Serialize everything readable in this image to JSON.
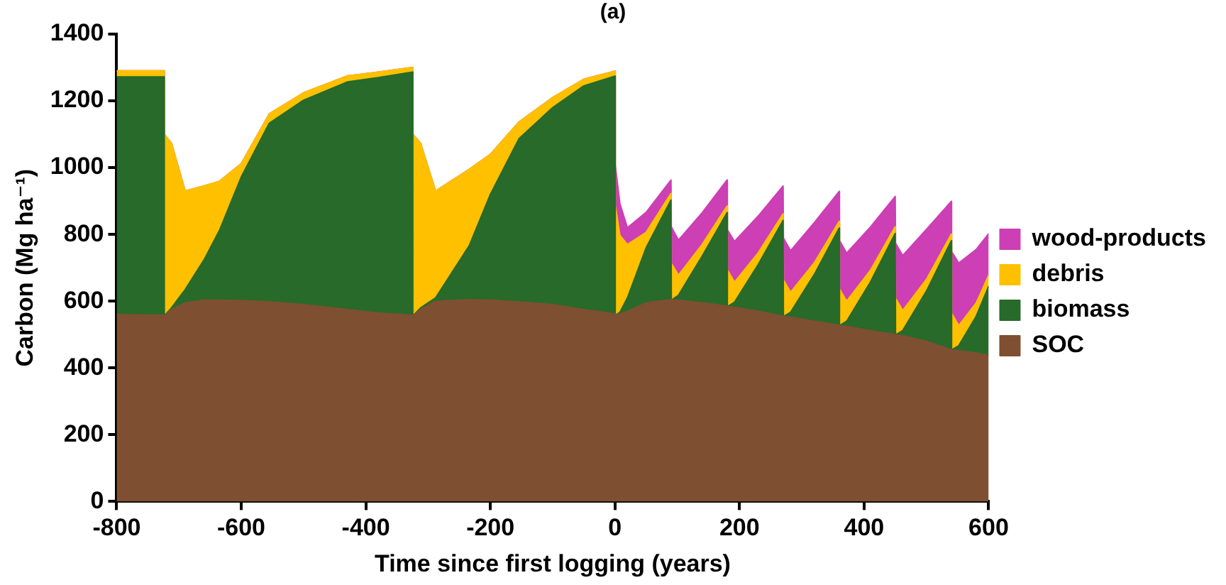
{
  "chart_data": {
    "type": "area",
    "title": "(a)",
    "xlabel": "Time since first logging (years)",
    "ylabel": "Carbon (Mg ha⁻¹)",
    "stacked": true,
    "legend": "right",
    "xlim": [
      -800,
      600
    ],
    "xticks": [
      -800,
      -600,
      -400,
      -200,
      0,
      200,
      400,
      600
    ],
    "ylim": [
      0,
      1400
    ],
    "yticks": [
      0,
      200,
      400,
      600,
      800,
      1000,
      1200,
      1400
    ],
    "x": [
      -800,
      -724,
      -723.5,
      -712,
      -690,
      -660,
      -635,
      -600,
      -555,
      -500,
      -429,
      -380,
      -325,
      -324.5,
      -312,
      -288,
      -234,
      -200,
      -154,
      -100,
      -50,
      0,
      0.5,
      8,
      20,
      50,
      90,
      90.5,
      102,
      140,
      180,
      180.5,
      192,
      230,
      270,
      270.5,
      282,
      320,
      360,
      360.5,
      372,
      410,
      450,
      450.5,
      462,
      500,
      540,
      540.5,
      552,
      580,
      600
    ],
    "series": [
      {
        "name": "SOC",
        "color": "#7f4f32",
        "values": [
          560,
          558,
          556,
          575,
          595,
          603,
          603,
          602,
          598,
          590,
          575,
          565,
          558,
          556,
          575,
          600,
          605,
          603,
          598,
          590,
          575,
          562,
          558,
          562,
          570,
          595,
          605,
          603,
          603,
          595,
          585,
          584,
          582,
          570,
          555,
          554,
          552,
          540,
          528,
          527,
          525,
          512,
          500,
          499,
          497,
          480,
          455,
          454,
          452,
          445,
          438
        ]
      },
      {
        "name": "biomass",
        "color": "#276a2a",
        "values": [
          712,
          714,
          0,
          5,
          40,
          120,
          209,
          370,
          535,
          612,
          682,
          705,
          728,
          0,
          5,
          10,
          161,
          317,
          489,
          590,
          670,
          712,
          0,
          5,
          40,
          165,
          298,
          0,
          15,
          140,
          280,
          0,
          15,
          140,
          287,
          0,
          15,
          140,
          291,
          0,
          15,
          145,
          303,
          0,
          15,
          150,
          326,
          0,
          15,
          110,
          207
        ]
      },
      {
        "name": "debris",
        "color": "#ffc000",
        "values": [
          18,
          18,
          544,
          493,
          295,
          222,
          147,
          40,
          28,
          22,
          18,
          16,
          14,
          544,
          493,
          320,
          229,
          120,
          50,
          30,
          20,
          15,
          330,
          230,
          160,
          46,
          20,
          110,
          60,
          35,
          20,
          110,
          60,
          35,
          20,
          110,
          60,
          35,
          20,
          110,
          60,
          35,
          20,
          110,
          60,
          35,
          20,
          110,
          60,
          40,
          33
        ]
      },
      {
        "name": "wood-products",
        "color": "#cc3fb5",
        "values": [
          0,
          0,
          0,
          0,
          0,
          0,
          0,
          0,
          0,
          0,
          0,
          0,
          0,
          0,
          0,
          0,
          0,
          0,
          0,
          0,
          0,
          0,
          120,
          95,
          50,
          60,
          40,
          110,
          105,
          95,
          78,
          120,
          122,
          110,
          83,
          125,
          124,
          120,
          90,
          145,
          144,
          130,
          91,
          165,
          165,
          150,
          98,
          185,
          187,
          160,
          124
        ]
      }
    ]
  }
}
